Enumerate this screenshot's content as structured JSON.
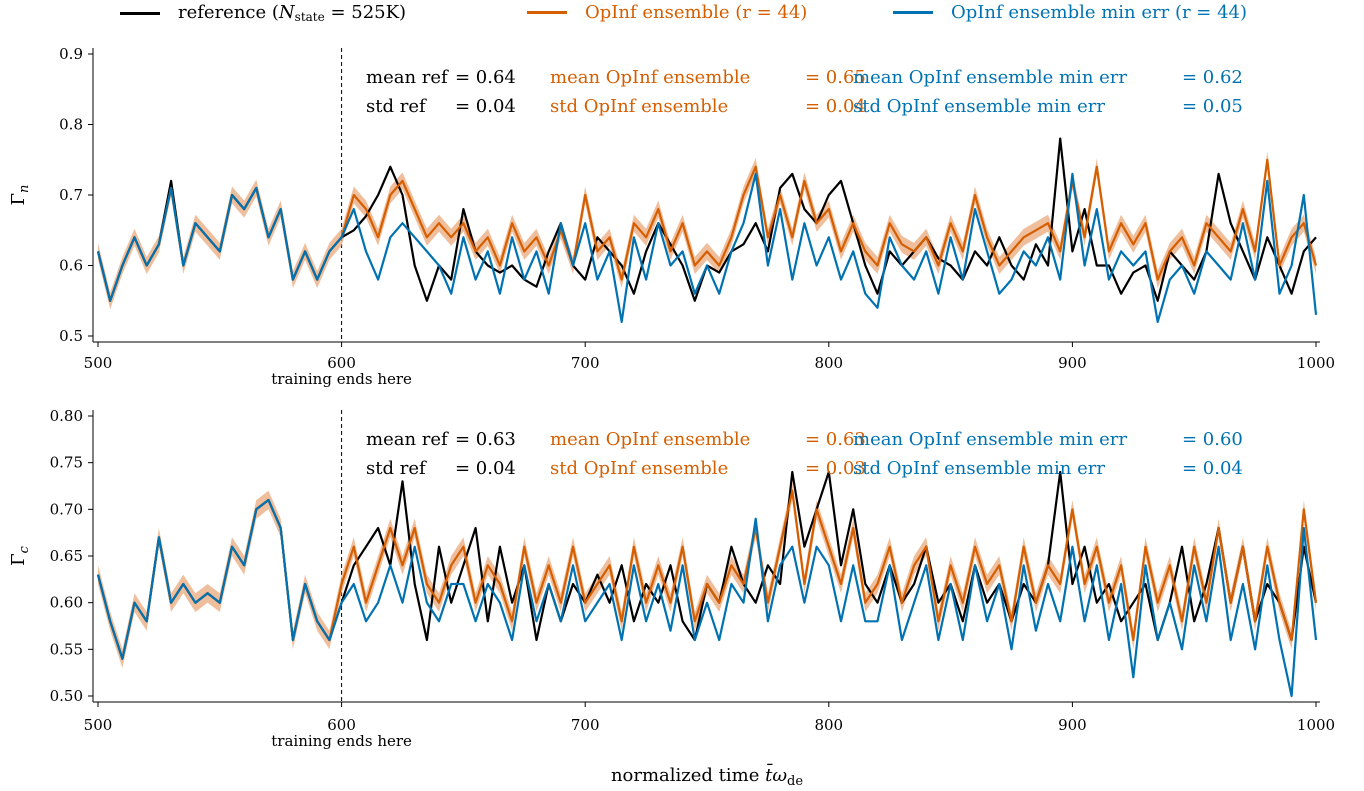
{
  "legend": {
    "reference": "reference (N_state = 525K)",
    "reference_prefix": "reference (",
    "reference_var": "N",
    "reference_sub": "state",
    "reference_suffix": " = 525K)",
    "ensemble": "OpInf ensemble (r = 44)",
    "ensemble_min": "OpInf ensemble min err (r = 44)",
    "colors": {
      "reference": "#000000",
      "ensemble": "#d55e00",
      "ensemble_min": "#0072b2",
      "band": "#e9a97c"
    }
  },
  "xlabel": "normalized time t̄ω_de",
  "xlabel_main": "normalized time ",
  "xlabel_var": "t̄ω",
  "xlabel_sub": "de",
  "chart_data": [
    {
      "type": "line",
      "ylabel": "Γ_n",
      "ylabel_main": "Γ",
      "ylabel_sub": "n",
      "xlim": [
        500,
        1000
      ],
      "ylim": [
        0.5,
        0.9
      ],
      "xticks": [
        "500",
        "600",
        "700",
        "800",
        "900",
        "1000"
      ],
      "yticks": [
        "0.5",
        "0.6",
        "0.7",
        "0.8",
        "0.9"
      ],
      "vline": {
        "x": 600,
        "label": "training ends here"
      },
      "stats": {
        "mean_ref": "mean ref  = 0.64",
        "std_ref": "std ref     = 0.04",
        "mean_ens": "mean OpInf ensemble = 0.65",
        "std_ens": "std OpInf ensemble     = 0.04",
        "mean_min": "mean OpInf ensemble min err  = 0.62",
        "std_min": "std OpInf ensemble min err     = 0.05"
      },
      "x": [
        500,
        505,
        510,
        515,
        520,
        525,
        530,
        535,
        540,
        545,
        550,
        555,
        560,
        565,
        570,
        575,
        580,
        585,
        590,
        595,
        600,
        605,
        610,
        615,
        620,
        625,
        630,
        635,
        640,
        645,
        650,
        655,
        660,
        665,
        670,
        675,
        680,
        685,
        690,
        695,
        700,
        705,
        710,
        715,
        720,
        725,
        730,
        735,
        740,
        745,
        750,
        755,
        760,
        765,
        770,
        775,
        780,
        785,
        790,
        795,
        800,
        805,
        810,
        815,
        820,
        825,
        830,
        835,
        840,
        845,
        850,
        855,
        860,
        865,
        870,
        875,
        880,
        885,
        890,
        895,
        900,
        905,
        910,
        915,
        920,
        925,
        930,
        935,
        940,
        945,
        950,
        955,
        960,
        965,
        970,
        975,
        980,
        985,
        990,
        995,
        1000
      ],
      "series": [
        {
          "name": "reference (N_state = 525K)",
          "values": [
            0.62,
            0.55,
            0.6,
            0.64,
            0.6,
            0.63,
            0.72,
            0.6,
            0.66,
            0.64,
            0.62,
            0.7,
            0.68,
            0.71,
            0.64,
            0.68,
            0.58,
            0.62,
            0.58,
            0.62,
            0.64,
            0.65,
            0.67,
            0.7,
            0.74,
            0.7,
            0.6,
            0.55,
            0.6,
            0.58,
            0.68,
            0.62,
            0.6,
            0.59,
            0.6,
            0.58,
            0.57,
            0.62,
            0.66,
            0.6,
            0.58,
            0.64,
            0.62,
            0.6,
            0.56,
            0.62,
            0.66,
            0.63,
            0.6,
            0.55,
            0.6,
            0.59,
            0.62,
            0.63,
            0.66,
            0.62,
            0.71,
            0.73,
            0.68,
            0.66,
            0.7,
            0.72,
            0.66,
            0.6,
            0.56,
            0.62,
            0.6,
            0.62,
            0.64,
            0.61,
            0.6,
            0.58,
            0.62,
            0.6,
            0.64,
            0.6,
            0.58,
            0.63,
            0.6,
            0.78,
            0.62,
            0.68,
            0.6,
            0.6,
            0.56,
            0.59,
            0.6,
            0.55,
            0.62,
            0.6,
            0.58,
            0.62,
            0.73,
            0.66,
            0.62,
            0.58,
            0.64,
            0.6,
            0.56,
            0.62,
            0.64
          ]
        },
        {
          "name": "OpInf ensemble (r = 44)",
          "values": [
            0.62,
            0.55,
            0.6,
            0.64,
            0.6,
            0.63,
            0.71,
            0.6,
            0.66,
            0.64,
            0.62,
            0.7,
            0.68,
            0.71,
            0.64,
            0.68,
            0.58,
            0.62,
            0.58,
            0.62,
            0.64,
            0.7,
            0.68,
            0.64,
            0.7,
            0.72,
            0.68,
            0.64,
            0.66,
            0.64,
            0.66,
            0.62,
            0.64,
            0.6,
            0.66,
            0.62,
            0.64,
            0.6,
            0.65,
            0.6,
            0.7,
            0.62,
            0.64,
            0.58,
            0.66,
            0.64,
            0.68,
            0.62,
            0.66,
            0.6,
            0.62,
            0.6,
            0.64,
            0.7,
            0.74,
            0.64,
            0.7,
            0.64,
            0.72,
            0.66,
            0.68,
            0.62,
            0.66,
            0.62,
            0.6,
            0.66,
            0.63,
            0.62,
            0.64,
            0.6,
            0.66,
            0.62,
            0.7,
            0.64,
            0.6,
            0.62,
            0.64,
            0.65,
            0.66,
            0.62,
            0.72,
            0.64,
            0.74,
            0.62,
            0.66,
            0.63,
            0.66,
            0.58,
            0.62,
            0.64,
            0.6,
            0.66,
            0.64,
            0.62,
            0.68,
            0.62,
            0.75,
            0.6,
            0.64,
            0.66,
            0.6
          ]
        },
        {
          "name": "OpInf ensemble min err (r = 44)",
          "values": [
            0.62,
            0.55,
            0.6,
            0.64,
            0.6,
            0.63,
            0.71,
            0.6,
            0.66,
            0.64,
            0.62,
            0.7,
            0.68,
            0.71,
            0.64,
            0.68,
            0.58,
            0.62,
            0.58,
            0.62,
            0.64,
            0.68,
            0.62,
            0.58,
            0.64,
            0.66,
            0.64,
            0.62,
            0.6,
            0.56,
            0.64,
            0.58,
            0.62,
            0.56,
            0.64,
            0.58,
            0.62,
            0.56,
            0.66,
            0.6,
            0.66,
            0.58,
            0.62,
            0.52,
            0.64,
            0.58,
            0.66,
            0.6,
            0.62,
            0.56,
            0.6,
            0.56,
            0.62,
            0.66,
            0.73,
            0.6,
            0.68,
            0.58,
            0.66,
            0.6,
            0.64,
            0.58,
            0.62,
            0.56,
            0.54,
            0.64,
            0.6,
            0.58,
            0.62,
            0.56,
            0.64,
            0.58,
            0.68,
            0.62,
            0.56,
            0.58,
            0.62,
            0.6,
            0.64,
            0.58,
            0.73,
            0.6,
            0.68,
            0.58,
            0.62,
            0.6,
            0.62,
            0.52,
            0.58,
            0.6,
            0.56,
            0.62,
            0.6,
            0.58,
            0.66,
            0.58,
            0.72,
            0.56,
            0.6,
            0.7,
            0.53
          ]
        }
      ],
      "band_halfwidth": 0.012
    },
    {
      "type": "line",
      "ylabel": "Γ_c",
      "ylabel_main": "Γ",
      "ylabel_sub": "c",
      "xlim": [
        500,
        1000
      ],
      "ylim": [
        0.5,
        0.8
      ],
      "xticks": [
        "500",
        "600",
        "700",
        "800",
        "900",
        "1000"
      ],
      "yticks": [
        "0.50",
        "0.55",
        "0.60",
        "0.65",
        "0.70",
        "0.75",
        "0.80"
      ],
      "vline": {
        "x": 600,
        "label": "training ends here"
      },
      "stats": {
        "mean_ref": "mean ref  = 0.63",
        "std_ref": "std ref     = 0.04",
        "mean_ens": "mean OpInf ensemble = 0.63",
        "std_ens": "std OpInf ensemble     = 0.03",
        "mean_min": "mean OpInf ensemble min err  = 0.60",
        "std_min": "std OpInf ensemble min err     = 0.04"
      },
      "x": [
        500,
        505,
        510,
        515,
        520,
        525,
        530,
        535,
        540,
        545,
        550,
        555,
        560,
        565,
        570,
        575,
        580,
        585,
        590,
        595,
        600,
        605,
        610,
        615,
        620,
        625,
        630,
        635,
        640,
        645,
        650,
        655,
        660,
        665,
        670,
        675,
        680,
        685,
        690,
        695,
        700,
        705,
        710,
        715,
        720,
        725,
        730,
        735,
        740,
        745,
        750,
        755,
        760,
        765,
        770,
        775,
        780,
        785,
        790,
        795,
        800,
        805,
        810,
        815,
        820,
        825,
        830,
        835,
        840,
        845,
        850,
        855,
        860,
        865,
        870,
        875,
        880,
        885,
        890,
        895,
        900,
        905,
        910,
        915,
        920,
        925,
        930,
        935,
        940,
        945,
        950,
        955,
        960,
        965,
        970,
        975,
        980,
        985,
        990,
        995,
        1000
      ],
      "series": [
        {
          "name": "reference (N_state = 525K)",
          "values": [
            0.63,
            0.58,
            0.54,
            0.6,
            0.58,
            0.67,
            0.6,
            0.62,
            0.6,
            0.61,
            0.6,
            0.66,
            0.64,
            0.7,
            0.71,
            0.68,
            0.56,
            0.62,
            0.58,
            0.56,
            0.6,
            0.64,
            0.66,
            0.68,
            0.64,
            0.73,
            0.62,
            0.56,
            0.66,
            0.6,
            0.64,
            0.68,
            0.58,
            0.66,
            0.6,
            0.64,
            0.56,
            0.62,
            0.58,
            0.62,
            0.6,
            0.63,
            0.6,
            0.64,
            0.58,
            0.62,
            0.6,
            0.64,
            0.58,
            0.56,
            0.62,
            0.6,
            0.66,
            0.62,
            0.6,
            0.64,
            0.62,
            0.74,
            0.66,
            0.7,
            0.74,
            0.64,
            0.7,
            0.62,
            0.6,
            0.64,
            0.6,
            0.62,
            0.66,
            0.6,
            0.62,
            0.58,
            0.64,
            0.6,
            0.62,
            0.58,
            0.62,
            0.6,
            0.64,
            0.74,
            0.62,
            0.66,
            0.6,
            0.62,
            0.58,
            0.6,
            0.62,
            0.56,
            0.6,
            0.66,
            0.58,
            0.62,
            0.68,
            0.6,
            0.66,
            0.58,
            0.62,
            0.6,
            0.56,
            0.66,
            0.6
          ]
        },
        {
          "name": "OpInf ensemble (r = 44)",
          "values": [
            0.63,
            0.58,
            0.54,
            0.6,
            0.58,
            0.67,
            0.6,
            0.62,
            0.6,
            0.61,
            0.6,
            0.66,
            0.64,
            0.7,
            0.71,
            0.68,
            0.56,
            0.62,
            0.58,
            0.56,
            0.62,
            0.66,
            0.6,
            0.64,
            0.68,
            0.64,
            0.68,
            0.62,
            0.6,
            0.64,
            0.66,
            0.6,
            0.64,
            0.62,
            0.58,
            0.66,
            0.6,
            0.64,
            0.6,
            0.66,
            0.6,
            0.62,
            0.64,
            0.58,
            0.66,
            0.6,
            0.64,
            0.6,
            0.66,
            0.58,
            0.62,
            0.6,
            0.64,
            0.62,
            0.68,
            0.6,
            0.66,
            0.72,
            0.62,
            0.7,
            0.66,
            0.62,
            0.68,
            0.6,
            0.62,
            0.66,
            0.6,
            0.64,
            0.66,
            0.58,
            0.64,
            0.6,
            0.66,
            0.62,
            0.64,
            0.58,
            0.66,
            0.6,
            0.64,
            0.62,
            0.7,
            0.62,
            0.66,
            0.6,
            0.64,
            0.56,
            0.66,
            0.6,
            0.64,
            0.58,
            0.66,
            0.6,
            0.68,
            0.6,
            0.66,
            0.58,
            0.66,
            0.6,
            0.56,
            0.7,
            0.6
          ]
        },
        {
          "name": "OpInf ensemble min err (r = 44)",
          "values": [
            0.63,
            0.58,
            0.54,
            0.6,
            0.58,
            0.67,
            0.6,
            0.62,
            0.6,
            0.61,
            0.6,
            0.66,
            0.64,
            0.7,
            0.71,
            0.68,
            0.56,
            0.62,
            0.58,
            0.56,
            0.6,
            0.62,
            0.58,
            0.6,
            0.64,
            0.6,
            0.66,
            0.6,
            0.58,
            0.62,
            0.62,
            0.58,
            0.62,
            0.6,
            0.56,
            0.64,
            0.58,
            0.62,
            0.58,
            0.64,
            0.58,
            0.6,
            0.62,
            0.56,
            0.64,
            0.58,
            0.62,
            0.57,
            0.64,
            0.56,
            0.6,
            0.56,
            0.62,
            0.6,
            0.69,
            0.58,
            0.64,
            0.66,
            0.6,
            0.66,
            0.64,
            0.58,
            0.64,
            0.58,
            0.58,
            0.64,
            0.56,
            0.6,
            0.64,
            0.56,
            0.62,
            0.56,
            0.64,
            0.58,
            0.62,
            0.55,
            0.64,
            0.57,
            0.62,
            0.58,
            0.66,
            0.58,
            0.64,
            0.56,
            0.62,
            0.52,
            0.64,
            0.56,
            0.6,
            0.55,
            0.64,
            0.58,
            0.66,
            0.56,
            0.62,
            0.55,
            0.64,
            0.56,
            0.5,
            0.68,
            0.56
          ]
        }
      ],
      "band_halfwidth": 0.01
    }
  ]
}
